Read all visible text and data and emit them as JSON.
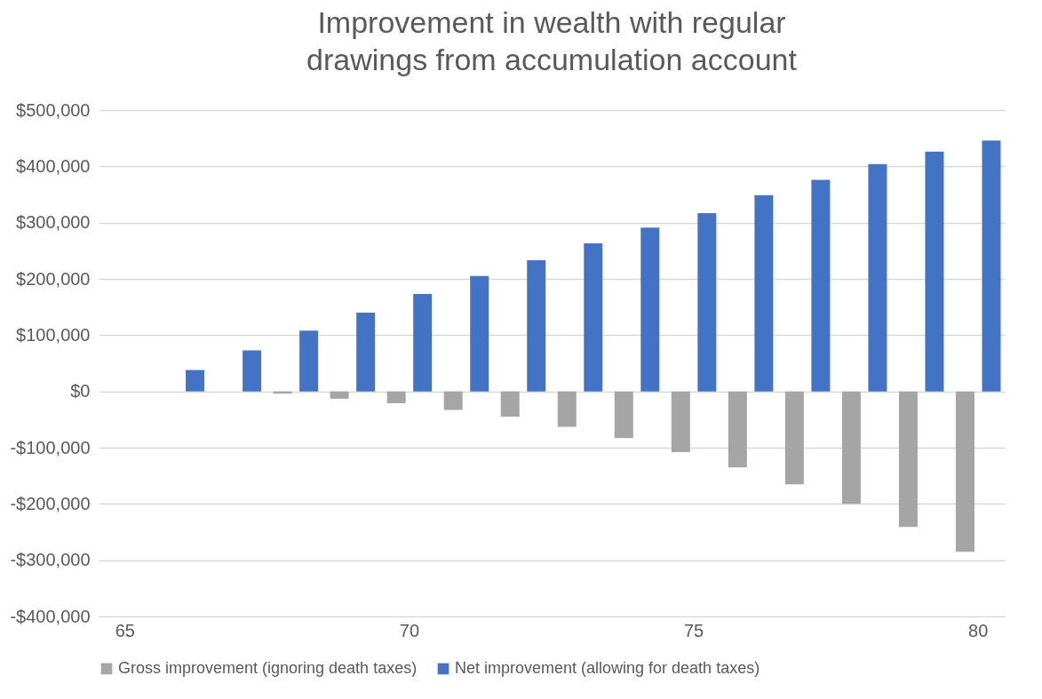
{
  "chart_data": {
    "type": "bar",
    "title": "Improvement in wealth with regular drawings from accumulation account",
    "categories": [
      "65",
      null,
      null,
      null,
      null,
      "70",
      null,
      null,
      null,
      null,
      "75",
      null,
      null,
      null,
      null,
      "80"
    ],
    "series": [
      {
        "name": "Gross improvement (ignoring death taxes)",
        "color": "#a5a5a5",
        "values": [
          0,
          0,
          0,
          -4000,
          -13000,
          -21000,
          -33000,
          -45000,
          -63000,
          -83000,
          -108000,
          -135000,
          -165000,
          -200000,
          -241000,
          -285000
        ]
      },
      {
        "name": "Net improvement (allowing for death taxes)",
        "color": "#4472c4",
        "values": [
          0,
          38000,
          73000,
          108000,
          140000,
          173000,
          205000,
          233000,
          263000,
          291000,
          317000,
          349000,
          376000,
          404000,
          426000,
          446000
        ]
      }
    ],
    "ylim": [
      -400000,
      500000
    ],
    "yticks": [
      {
        "value": -400000,
        "label": "-$400,000"
      },
      {
        "value": -300000,
        "label": "-$300,000"
      },
      {
        "value": -200000,
        "label": "-$200,000"
      },
      {
        "value": -100000,
        "label": "-$100,000"
      },
      {
        "value": 0,
        "label": "$0"
      },
      {
        "value": 100000,
        "label": "$100,000"
      },
      {
        "value": 200000,
        "label": "$200,000"
      },
      {
        "value": 300000,
        "label": "$300,000"
      },
      {
        "value": 400000,
        "label": "$400,000"
      },
      {
        "value": 500000,
        "label": "$500,000"
      }
    ],
    "grid": "y",
    "legend": "bottom"
  }
}
